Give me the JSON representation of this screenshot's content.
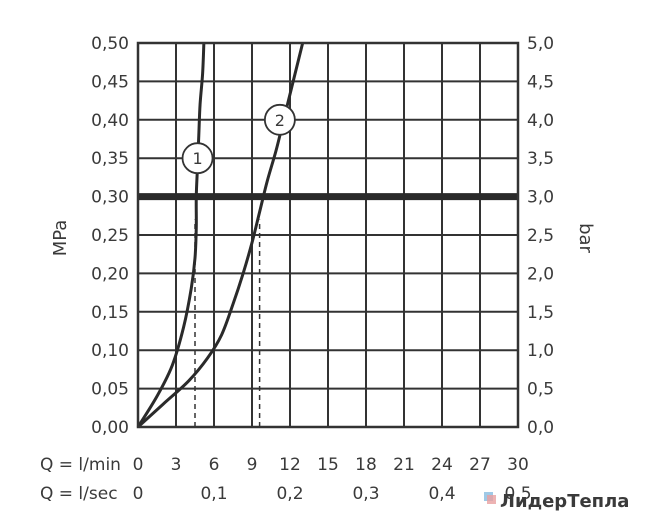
{
  "chart_data": {
    "type": "line",
    "y_left_label": "MPa",
    "y_right_label": "bar",
    "x_row_labels": [
      "Q = l/min",
      "Q = l/sec"
    ],
    "x_lpm_range": [
      0,
      30
    ],
    "y_mpa_range": [
      0,
      0.5
    ],
    "x_ticks_lpm": [
      "0",
      "3",
      "6",
      "9",
      "12",
      "15",
      "18",
      "21",
      "24",
      "27",
      "30"
    ],
    "x_ticks_lps": [
      {
        "value": 0,
        "label": "0"
      },
      {
        "value": 0.1,
        "label": "0,1"
      },
      {
        "value": 0.2,
        "label": "0,2"
      },
      {
        "value": 0.3,
        "label": "0,3"
      },
      {
        "value": 0.4,
        "label": "0,4"
      },
      {
        "value": 0.5,
        "label": "0,5"
      }
    ],
    "y_ticks_left": [
      "0,00",
      "0,05",
      "0,10",
      "0,15",
      "0,20",
      "0,25",
      "0,30",
      "0,35",
      "0,40",
      "0,45",
      "0,50"
    ],
    "y_ticks_right": [
      "0,0",
      "0,5",
      "1,0",
      "1,5",
      "2,0",
      "2,5",
      "3,0",
      "3,5",
      "4,0",
      "4,5",
      "5,0"
    ],
    "reference_line_mpa": 0.3,
    "grid": true,
    "series": [
      {
        "name": "1",
        "points": [
          [
            0,
            0
          ],
          [
            1.5,
            0.04
          ],
          [
            2.7,
            0.08
          ],
          [
            3.6,
            0.13
          ],
          [
            4.2,
            0.18
          ],
          [
            4.5,
            0.22
          ],
          [
            4.6,
            0.26
          ],
          [
            4.6,
            0.3
          ],
          [
            4.7,
            0.34
          ],
          [
            4.8,
            0.38
          ],
          [
            4.9,
            0.42
          ],
          [
            5.1,
            0.46
          ],
          [
            5.2,
            0.5
          ]
        ],
        "marker_at": [
          4.7,
          0.35
        ],
        "read_off_x": 4.5
      },
      {
        "name": "2",
        "points": [
          [
            0,
            0
          ],
          [
            2,
            0.03
          ],
          [
            4,
            0.06
          ],
          [
            5.5,
            0.09
          ],
          [
            6.6,
            0.12
          ],
          [
            7.5,
            0.16
          ],
          [
            8.3,
            0.2
          ],
          [
            9,
            0.24
          ],
          [
            9.6,
            0.28
          ],
          [
            10.2,
            0.32
          ],
          [
            10.9,
            0.36
          ],
          [
            11.5,
            0.4
          ],
          [
            12.1,
            0.44
          ],
          [
            12.7,
            0.48
          ],
          [
            13,
            0.5
          ]
        ],
        "marker_at": [
          11.2,
          0.4
        ],
        "read_off_x": 9.6
      }
    ]
  },
  "watermark": {
    "text": "ЛидерТепла"
  }
}
